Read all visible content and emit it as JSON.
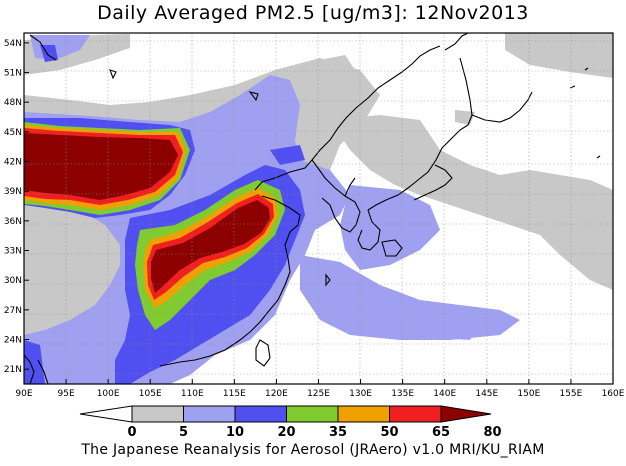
{
  "title": "Daily Averaged PM2.5 [ug/m3]: 12Nov2013",
  "credit": "The Japanese Reanalysis for Aerosol (JRAero) v1.0 MRI/KU_RIAM",
  "map": {
    "lon_range": [
      90,
      160
    ],
    "lat_range": [
      19.5,
      55
    ],
    "lon_ticks": [
      "90E",
      "95E",
      "100E",
      "105E",
      "110E",
      "115E",
      "120E",
      "125E",
      "130E",
      "135E",
      "140E",
      "145E",
      "150E",
      "155E",
      "160E"
    ],
    "lat_ticks": [
      "21N",
      "24N",
      "27N",
      "30N",
      "33N",
      "36N",
      "39N",
      "42N",
      "45N",
      "48N",
      "51N",
      "54N"
    ],
    "grid": true
  },
  "colorbar": {
    "levels": [
      "0",
      "5",
      "10",
      "20",
      "35",
      "50",
      "65",
      "80"
    ],
    "colors": [
      "#ffffff",
      "#c8c8c8",
      "#a0a0f0",
      "#5050f0",
      "#80cc30",
      "#f0a000",
      "#f02020",
      "#8c0000"
    ]
  }
}
